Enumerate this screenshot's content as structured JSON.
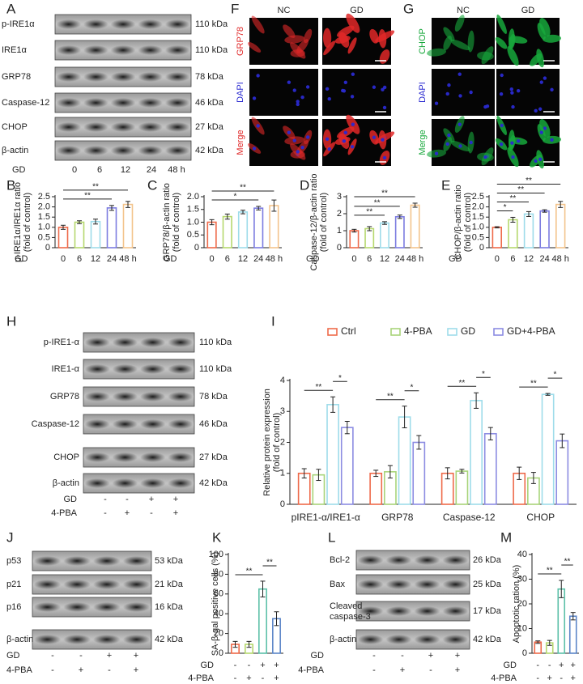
{
  "panels": {
    "A": {
      "label": "A",
      "blots": [
        {
          "name": "p-IRE1α",
          "size": "110 kDa"
        },
        {
          "name": "IRE1α",
          "size": "110 kDa"
        },
        {
          "name": "GRP78",
          "size": "78 kDa"
        },
        {
          "name": "Caspase-12",
          "size": "46 kDa"
        },
        {
          "name": "CHOP",
          "size": "27 kDa"
        },
        {
          "name": "β-actin",
          "size": "42 kDa"
        }
      ],
      "lane_rows": [
        {
          "name": "GD",
          "values": [
            "0",
            "6",
            "12",
            "24",
            "48 h"
          ]
        }
      ]
    },
    "F": {
      "label": "F",
      "columns": [
        "NC",
        "GD"
      ],
      "rows": [
        "GRP78",
        "DAPI",
        "Merge"
      ],
      "row_colors": [
        "#e02828",
        "#2a2ad0",
        "#e02828"
      ]
    },
    "G": {
      "label": "G",
      "columns": [
        "NC",
        "GD"
      ],
      "rows": [
        "CHOP",
        "DAPI",
        "Merge"
      ],
      "row_colors": [
        "#18a83c",
        "#2a2ad0",
        "#18a83c"
      ]
    },
    "H": {
      "label": "H",
      "blots": [
        {
          "name": "p-IRE1-α",
          "size": "110 kDa"
        },
        {
          "name": "IRE1-α",
          "size": "110 kDa"
        },
        {
          "name": "GRP78",
          "size": "78 kDa"
        },
        {
          "name": "Caspase-12",
          "size": "46 kDa"
        },
        {
          "name": "CHOP",
          "size": "27 kDa"
        },
        {
          "name": "β-actin",
          "size": "42 kDa"
        }
      ],
      "lane_rows": [
        {
          "name": "GD",
          "values": [
            "-",
            "-",
            "+",
            "+"
          ]
        },
        {
          "name": "4-PBA",
          "values": [
            "-",
            "+",
            "-",
            "+"
          ]
        }
      ]
    },
    "J": {
      "label": "J",
      "blots": [
        {
          "name": "p53",
          "size": "53 kDa"
        },
        {
          "name": "p21",
          "size": "21 kDa"
        },
        {
          "name": "p16",
          "size": "16 kDa"
        },
        {
          "name": "β-actin",
          "size": "42 kDa"
        }
      ],
      "lane_rows": [
        {
          "name": "GD",
          "values": [
            "-",
            "-",
            "+",
            "+"
          ]
        },
        {
          "name": "4-PBA",
          "values": [
            "-",
            "+",
            "-",
            "+"
          ]
        }
      ]
    },
    "L": {
      "label": "L",
      "blots": [
        {
          "name": "Bcl-2",
          "size": "26 kDa"
        },
        {
          "name": "Bax",
          "size": "25 kDa"
        },
        {
          "name": [
            "Cleaved",
            "caspase-3"
          ],
          "size": "17 kDa"
        },
        {
          "name": "β-actin",
          "size": "42 kDa"
        }
      ],
      "lane_rows": [
        {
          "name": "GD",
          "values": [
            "-",
            "-",
            "+",
            "+"
          ]
        },
        {
          "name": "4-PBA",
          "values": [
            "-",
            "+",
            "-",
            "+"
          ]
        }
      ]
    }
  },
  "chart_data": [
    {
      "type": "bar",
      "label": "B",
      "ylabel": [
        "p-IRE1α/IRE1α ratio",
        "(fold of control)"
      ],
      "xlabel": "GD",
      "categories": [
        "0",
        "6",
        "12",
        "24",
        "48 h"
      ],
      "values": [
        1.0,
        1.25,
        1.28,
        1.95,
        2.12
      ],
      "errors": [
        0.1,
        0.07,
        0.12,
        0.12,
        0.15
      ],
      "colors": [
        "#ee6a4a",
        "#b6d86e",
        "#9edcea",
        "#7c7ce0",
        "#f3c48c"
      ],
      "ylim": [
        0,
        2.5
      ],
      "yticks": [
        0,
        0.5,
        {
          "value": 1,
          "label": "1.0"
        },
        1.5,
        {
          "value": 2,
          "label": "2.0"
        },
        2.5
      ],
      "significance": [
        {
          "span": [
            0,
            3
          ],
          "text": "**"
        },
        {
          "span": [
            0,
            4
          ],
          "text": "**"
        }
      ]
    },
    {
      "type": "bar",
      "label": "C",
      "ylabel": [
        "GRP78/β-actin ratio",
        "(fold of control)"
      ],
      "xlabel": "GD",
      "categories": [
        "0",
        "6",
        "12",
        "24",
        "48 h"
      ],
      "values": [
        1.0,
        1.22,
        1.4,
        1.55,
        1.65
      ],
      "errors": [
        0.1,
        0.1,
        0.07,
        0.07,
        0.22
      ],
      "colors": [
        "#ee6a4a",
        "#b6d86e",
        "#9edcea",
        "#7c7ce0",
        "#f3c48c"
      ],
      "ylim": [
        0,
        2
      ],
      "yticks": [
        0,
        0.5,
        {
          "value": 1,
          "label": "1.0"
        },
        1.5,
        {
          "value": 2,
          "label": "2.0"
        }
      ],
      "significance": [
        {
          "span": [
            0,
            3
          ],
          "text": "*"
        },
        {
          "span": [
            0,
            4
          ],
          "text": "**"
        }
      ]
    },
    {
      "type": "bar",
      "label": "D",
      "ylabel": [
        "Caspase-12/β-actin ratio",
        "(fold of control)"
      ],
      "xlabel": "GD",
      "categories": [
        "0",
        "6",
        "12",
        "24",
        "48 h"
      ],
      "values": [
        1.0,
        1.12,
        1.45,
        1.82,
        2.5
      ],
      "errors": [
        0.08,
        0.12,
        0.08,
        0.1,
        0.12
      ],
      "colors": [
        "#ee6a4a",
        "#b6d86e",
        "#9edcea",
        "#7c7ce0",
        "#f3c48c"
      ],
      "ylim": [
        0,
        3
      ],
      "yticks": [
        0,
        1,
        2,
        3
      ],
      "significance": [
        {
          "span": [
            0,
            2
          ],
          "text": "**"
        },
        {
          "span": [
            0,
            3
          ],
          "text": "**"
        },
        {
          "span": [
            0,
            4
          ],
          "text": "**"
        }
      ]
    },
    {
      "type": "bar",
      "label": "E",
      "ylabel": [
        "CHOP/β-actin ratio",
        "(fold of control)"
      ],
      "xlabel": "GD",
      "categories": [
        "0",
        "6",
        "12",
        "24",
        "48 h"
      ],
      "values": [
        1.0,
        1.37,
        1.65,
        1.8,
        2.12
      ],
      "errors": [
        0.03,
        0.12,
        0.12,
        0.06,
        0.15
      ],
      "colors": [
        "#ee6a4a",
        "#b6d86e",
        "#9edcea",
        "#7c7ce0",
        "#f3c48c"
      ],
      "ylim": [
        0,
        2.5
      ],
      "yticks": [
        0,
        0.5,
        {
          "value": 1,
          "label": "1.0"
        },
        1.5,
        {
          "value": 2,
          "label": "2.0"
        },
        2.5
      ],
      "significance": [
        {
          "span": [
            0,
            1
          ],
          "text": "*"
        },
        {
          "span": [
            0,
            2
          ],
          "text": "**"
        },
        {
          "span": [
            0,
            3
          ],
          "text": "**"
        },
        {
          "span": [
            0,
            4
          ],
          "text": "**"
        }
      ]
    },
    {
      "type": "bar",
      "label": "I",
      "ylabel": [
        "Relative protein expression",
        "(fold of control)"
      ],
      "categories": [
        "pIRE1-α/IRE1-α",
        "GRP78",
        "Caspase-12",
        "CHOP"
      ],
      "series": [
        {
          "name": "Ctrl",
          "color": "#ee6a4a",
          "values": [
            1.0,
            1.0,
            1.0,
            1.0
          ],
          "errors": [
            0.15,
            0.1,
            0.18,
            0.2
          ]
        },
        {
          "name": "4-PBA",
          "color": "#a8d47a",
          "values": [
            0.95,
            1.05,
            1.07,
            0.85
          ],
          "errors": [
            0.18,
            0.2,
            0.06,
            0.18
          ]
        },
        {
          "name": "GD",
          "color": "#9edcea",
          "values": [
            3.22,
            2.82,
            3.35,
            3.55
          ],
          "errors": [
            0.25,
            0.35,
            0.25,
            0.03
          ]
        },
        {
          "name": "GD+4-PBA",
          "color": "#8c8ce2",
          "values": [
            2.48,
            2.0,
            2.28,
            2.05
          ],
          "errors": [
            0.2,
            0.22,
            0.2,
            0.22
          ]
        }
      ],
      "ylim": [
        0,
        4
      ],
      "yticks": [
        0,
        1,
        2,
        3,
        4
      ],
      "significance": [
        {
          "group": 0,
          "span": [
            0,
            2
          ],
          "text": "**"
        },
        {
          "group": 0,
          "span": [
            2,
            3
          ],
          "text": "*"
        },
        {
          "group": 1,
          "span": [
            0,
            2
          ],
          "text": "**"
        },
        {
          "group": 1,
          "span": [
            2,
            3
          ],
          "text": "*"
        },
        {
          "group": 2,
          "span": [
            0,
            2
          ],
          "text": "**"
        },
        {
          "group": 2,
          "span": [
            2,
            3
          ],
          "text": "*"
        },
        {
          "group": 3,
          "span": [
            0,
            2
          ],
          "text": "**"
        },
        {
          "group": 3,
          "span": [
            2,
            3
          ],
          "text": "*"
        }
      ]
    },
    {
      "type": "bar",
      "label": "K",
      "ylabel": [
        "SA-β-gal positive cells (%)"
      ],
      "conditions": [
        {
          "name": "GD",
          "values": [
            "-",
            "-",
            "+",
            "+"
          ]
        },
        {
          "name": "4-PBA",
          "values": [
            "-",
            "+",
            "-",
            "+"
          ]
        }
      ],
      "values": [
        9,
        9,
        65,
        35
      ],
      "errors": [
        3,
        3,
        8,
        7
      ],
      "colors": [
        "#ee6a4a",
        "#b6d86e",
        "#5cc0a8",
        "#5c86c8"
      ],
      "ylim": [
        0,
        100
      ],
      "yticks": [
        0,
        20,
        40,
        60,
        80,
        100
      ],
      "significance": [
        {
          "span": [
            0,
            2
          ],
          "text": "**"
        },
        {
          "span": [
            2,
            3
          ],
          "text": "**"
        }
      ]
    },
    {
      "type": "bar",
      "label": "M",
      "ylabel": [
        "Apoptotic ration (%)"
      ],
      "conditions": [
        {
          "name": "GD",
          "values": [
            "-",
            "-",
            "+",
            "+"
          ]
        },
        {
          "name": "4-PBA",
          "values": [
            "-",
            "+",
            "-",
            "+"
          ]
        }
      ],
      "values": [
        4.5,
        4.2,
        26,
        15
      ],
      "errors": [
        0.5,
        1,
        3.5,
        1.5
      ],
      "colors": [
        "#ee6a4a",
        "#b6d86e",
        "#5cc0a8",
        "#5c86c8"
      ],
      "ylim": [
        0,
        40
      ],
      "yticks": [
        0,
        10,
        20,
        30,
        40
      ],
      "significance": [
        {
          "span": [
            0,
            2
          ],
          "text": "**"
        },
        {
          "span": [
            2,
            3
          ],
          "text": "**"
        }
      ]
    }
  ]
}
